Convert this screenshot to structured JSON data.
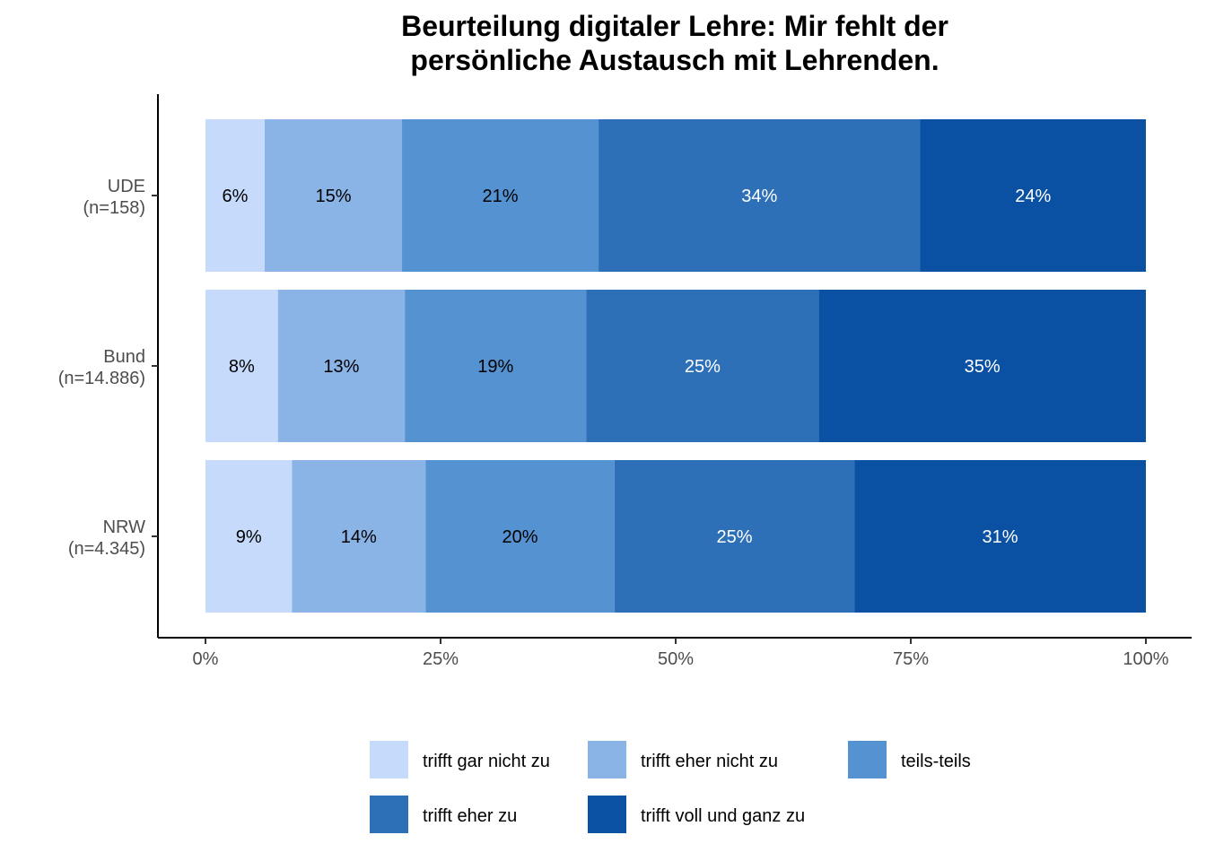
{
  "chart_data": {
    "type": "bar",
    "orientation": "horizontal",
    "stacked": "percent",
    "title_lines": [
      "Beurteilung digitaler Lehre: Mir fehlt der",
      "persönliche Austausch mit Lehrenden."
    ],
    "categories": [
      {
        "name": "UDE",
        "n": "(n=158)"
      },
      {
        "name": "Bund",
        "n": "(n=14.886)"
      },
      {
        "name": "NRW",
        "n": "(n=4.345)"
      }
    ],
    "series": [
      {
        "name": "trifft gar nicht zu",
        "color": "#c6dbfc",
        "text_color": "#000000",
        "values": [
          6.3,
          7.7,
          9.2
        ],
        "labels": [
          "6%",
          "8%",
          "9%"
        ]
      },
      {
        "name": "trifft eher nicht zu",
        "color": "#8ab3e6",
        "text_color": "#000000",
        "values": [
          14.6,
          13.5,
          14.2
        ],
        "labels": [
          "15%",
          "13%",
          "14%"
        ]
      },
      {
        "name": "teils-teils",
        "color": "#5592d1",
        "text_color": "#000000",
        "values": [
          20.9,
          19.3,
          20.1
        ],
        "labels": [
          "21%",
          "19%",
          "20%"
        ]
      },
      {
        "name": "trifft eher zu",
        "color": "#2d70b8",
        "text_color": "#ffffff",
        "values": [
          34.2,
          24.7,
          25.5
        ],
        "labels": [
          "34%",
          "25%",
          "25%"
        ]
      },
      {
        "name": "trifft voll und ganz zu",
        "color": "#0b51a3",
        "text_color": "#ffffff",
        "values": [
          24.0,
          34.8,
          31.0
        ],
        "labels": [
          "24%",
          "35%",
          "31%"
        ]
      }
    ],
    "xlim": [
      0,
      100
    ],
    "x_ticks": [
      0,
      25,
      50,
      75,
      100
    ],
    "x_tick_labels": [
      "0%",
      "25%",
      "50%",
      "75%",
      "100%"
    ],
    "xlabel": "",
    "ylabel": "",
    "grid": false,
    "legend_position": "bottom"
  }
}
